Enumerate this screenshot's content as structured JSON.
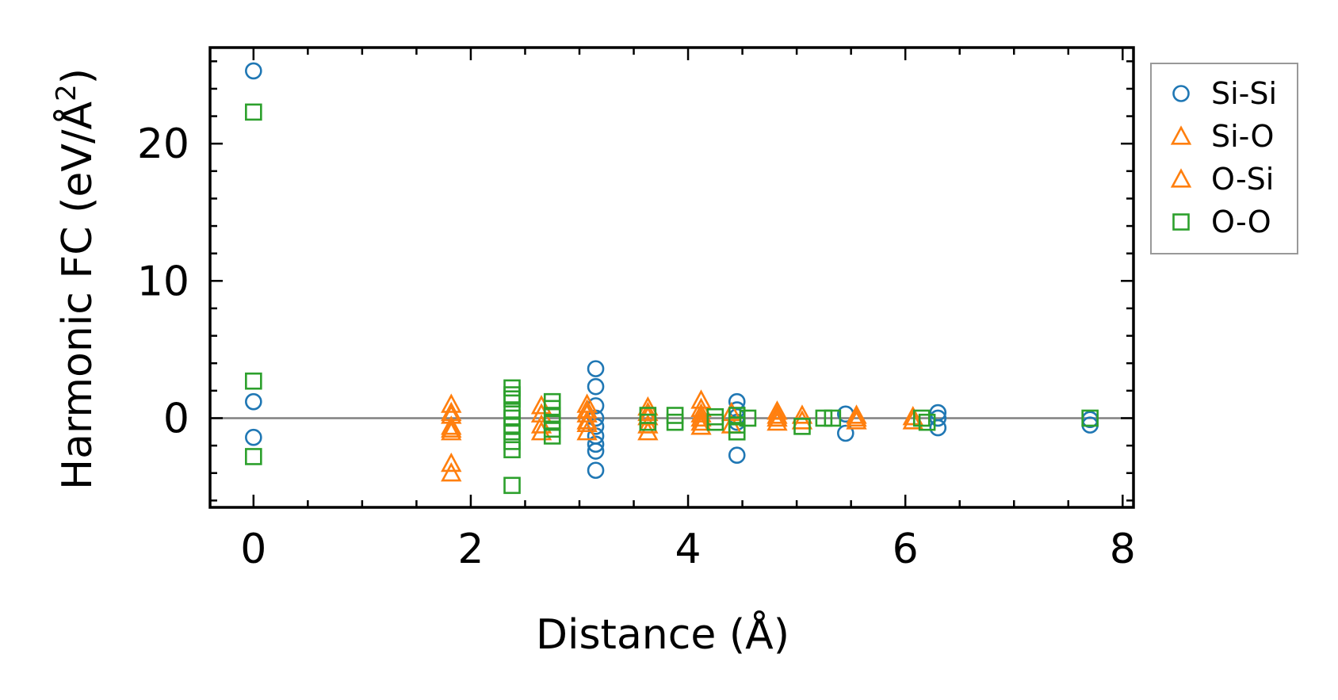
{
  "chart_data": {
    "type": "scatter",
    "xlabel": "Distance (Å)",
    "ylabel_prefix": "Harmonic FC (eV/Å",
    "ylabel_sup": "2",
    "ylabel_suffix": ")",
    "xlim": [
      -0.4,
      8.1
    ],
    "ylim": [
      -6.5,
      27
    ],
    "x_ticks": [
      0,
      2,
      4,
      6,
      8
    ],
    "x_tick_labels": [
      "0",
      "2",
      "4",
      "6",
      "8"
    ],
    "y_ticks": [
      0,
      10,
      20
    ],
    "y_tick_labels": [
      "0",
      "10",
      "20"
    ],
    "grid": false,
    "legend_position": "outside right, top",
    "zero_line_color": "#808080",
    "series": [
      {
        "name": "Si-Si",
        "marker": "circle",
        "color": "#1f77b4",
        "points": [
          [
            0,
            25.3
          ],
          [
            0,
            1.2
          ],
          [
            0,
            -1.4
          ],
          [
            3.15,
            3.6
          ],
          [
            3.15,
            2.3
          ],
          [
            3.15,
            0.9
          ],
          [
            3.15,
            0.0
          ],
          [
            3.15,
            -0.6
          ],
          [
            3.15,
            -1.3
          ],
          [
            3.15,
            -1.9
          ],
          [
            3.15,
            -2.4
          ],
          [
            3.15,
            -3.8
          ],
          [
            4.45,
            1.2
          ],
          [
            4.45,
            0.6
          ],
          [
            4.45,
            0.1
          ],
          [
            4.45,
            -0.3
          ],
          [
            4.45,
            -2.7
          ],
          [
            5.45,
            0.3
          ],
          [
            5.45,
            -1.1
          ],
          [
            6.3,
            0.4
          ],
          [
            6.3,
            0.0
          ],
          [
            6.3,
            -0.7
          ],
          [
            7.7,
            -0.1
          ],
          [
            7.7,
            -0.5
          ]
        ]
      },
      {
        "name": "Si-O",
        "marker": "triangle",
        "color": "#ff7f0e",
        "points": [
          [
            1.82,
            1.0
          ],
          [
            1.82,
            0.4
          ],
          [
            1.82,
            -0.6
          ],
          [
            1.82,
            -1.0
          ],
          [
            1.82,
            -3.3
          ],
          [
            1.82,
            -4.0
          ],
          [
            2.65,
            0.9
          ],
          [
            2.65,
            -0.5
          ],
          [
            2.65,
            -1.0
          ],
          [
            3.07,
            1.0
          ],
          [
            3.07,
            0.3
          ],
          [
            3.07,
            -0.4
          ],
          [
            3.07,
            -1.0
          ],
          [
            3.63,
            0.8
          ],
          [
            3.63,
            0.1
          ],
          [
            3.63,
            -0.5
          ],
          [
            3.63,
            -1.0
          ],
          [
            4.12,
            1.3
          ],
          [
            4.12,
            0.7
          ],
          [
            4.12,
            0.0
          ],
          [
            4.12,
            -0.6
          ],
          [
            4.4,
            0.4
          ],
          [
            4.4,
            -0.5
          ],
          [
            4.82,
            0.5
          ],
          [
            4.82,
            0.0
          ],
          [
            4.82,
            -0.3
          ],
          [
            5.05,
            0.2
          ],
          [
            5.05,
            -0.2
          ],
          [
            5.55,
            0.2
          ],
          [
            5.55,
            -0.2
          ],
          [
            6.07,
            0.1
          ],
          [
            6.07,
            -0.2
          ]
        ]
      },
      {
        "name": "O-Si",
        "marker": "triangle",
        "color": "#ff7f0e",
        "points": [
          [
            1.82,
            0.2
          ],
          [
            1.82,
            -0.8
          ],
          [
            2.65,
            0.3
          ],
          [
            3.07,
            0.6
          ],
          [
            3.07,
            -0.2
          ],
          [
            3.63,
            0.4
          ],
          [
            4.12,
            0.3
          ],
          [
            4.12,
            -0.3
          ],
          [
            4.82,
            0.2
          ],
          [
            5.55,
            0.0
          ]
        ]
      },
      {
        "name": "O-O",
        "marker": "square",
        "color": "#2ca02c",
        "points": [
          [
            0,
            22.3
          ],
          [
            0,
            2.7
          ],
          [
            0,
            -2.8
          ],
          [
            2.38,
            2.2
          ],
          [
            2.38,
            1.7
          ],
          [
            2.38,
            1.4
          ],
          [
            2.38,
            0.5
          ],
          [
            2.38,
            0.0
          ],
          [
            2.38,
            -0.5
          ],
          [
            2.38,
            -1.0
          ],
          [
            2.38,
            -1.7
          ],
          [
            2.38,
            -2.3
          ],
          [
            2.38,
            -4.9
          ],
          [
            2.75,
            1.2
          ],
          [
            2.75,
            0.7
          ],
          [
            2.75,
            0.2
          ],
          [
            2.75,
            -0.3
          ],
          [
            2.75,
            -0.8
          ],
          [
            2.75,
            -1.3
          ],
          [
            3.63,
            0.2
          ],
          [
            3.63,
            -0.3
          ],
          [
            3.88,
            0.2
          ],
          [
            3.88,
            -0.3
          ],
          [
            4.25,
            0.1
          ],
          [
            4.25,
            -0.3
          ],
          [
            4.45,
            0.2
          ],
          [
            4.45,
            -0.5
          ],
          [
            4.45,
            -1.0
          ],
          [
            4.55,
            0.0
          ],
          [
            5.05,
            -0.6
          ],
          [
            5.25,
            0.0
          ],
          [
            5.33,
            0.0
          ],
          [
            6.15,
            0.0
          ],
          [
            6.2,
            -0.3
          ],
          [
            7.7,
            0.0
          ]
        ]
      }
    ]
  }
}
